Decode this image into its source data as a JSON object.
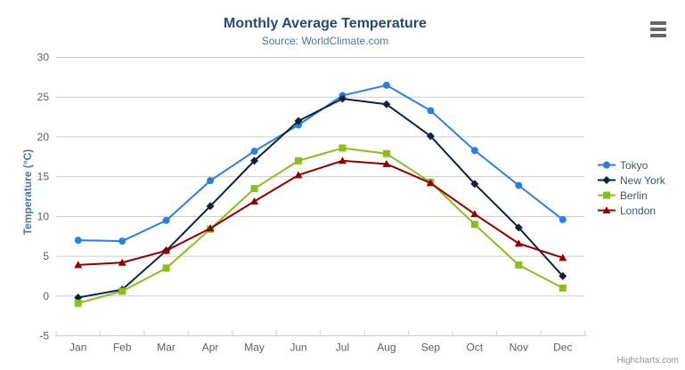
{
  "credits": {
    "label": "Highcharts.com"
  },
  "icons": {
    "context_menu": "hamburger-bars"
  },
  "chart_data": {
    "type": "line",
    "title": "Monthly Average Temperature",
    "subtitle": "Source: WorldClimate.com",
    "categories": [
      "Jan",
      "Feb",
      "Mar",
      "Apr",
      "May",
      "Jun",
      "Jul",
      "Aug",
      "Sep",
      "Oct",
      "Nov",
      "Dec"
    ],
    "series": [
      {
        "name": "Tokyo",
        "color": "#2f7ed8",
        "marker": "circle",
        "values": [
          7.0,
          6.9,
          9.5,
          14.5,
          18.2,
          21.5,
          25.2,
          26.5,
          23.3,
          18.3,
          13.9,
          9.6
        ]
      },
      {
        "name": "New York",
        "color": "#0d233a",
        "marker": "diamond",
        "values": [
          -0.2,
          0.8,
          5.7,
          11.3,
          17.0,
          22.0,
          24.8,
          24.1,
          20.1,
          14.1,
          8.6,
          2.5
        ]
      },
      {
        "name": "Berlin",
        "color": "#8bbc21",
        "marker": "square",
        "values": [
          -0.9,
          0.6,
          3.5,
          8.4,
          13.5,
          17.0,
          18.6,
          17.9,
          14.3,
          9.0,
          3.9,
          1.0
        ]
      },
      {
        "name": "London",
        "color": "#910000",
        "marker": "triangle",
        "values": [
          3.9,
          4.2,
          5.7,
          8.5,
          11.9,
          15.2,
          17.0,
          16.6,
          14.2,
          10.3,
          6.6,
          4.8
        ]
      }
    ],
    "xlabel": "",
    "ylabel": "Temperature (°C)",
    "ylim": [
      -5,
      30
    ],
    "yticks": [
      -5,
      0,
      5,
      10,
      15,
      20,
      25,
      30
    ],
    "grid": true,
    "legend_position": "right",
    "style": {
      "title_color": "#274b6d",
      "subtitle_color": "#4d759e",
      "axis_title_color": "#4d759e",
      "tick_label_color": "#606060",
      "gridline_color": "#cccccc",
      "axis_line_color": "#c0d0e0",
      "legend_text_color": "#3e576f",
      "credits_color": "#909090"
    }
  }
}
